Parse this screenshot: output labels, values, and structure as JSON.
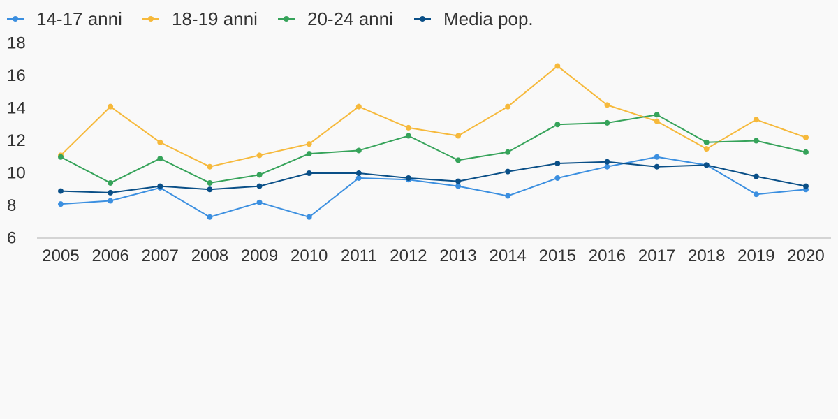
{
  "chart_data": {
    "type": "line",
    "title": "",
    "xlabel": "",
    "ylabel": "",
    "categories": [
      "2005",
      "2006",
      "2007",
      "2008",
      "2009",
      "2010",
      "2011",
      "2012",
      "2013",
      "2014",
      "2015",
      "2016",
      "2017",
      "2018",
      "2019",
      "2020"
    ],
    "yticks": [
      "6",
      "8",
      "10",
      "12",
      "14",
      "16",
      "18"
    ],
    "ylim": [
      6,
      18
    ],
    "grid": false,
    "legend_position": "top-left",
    "series": [
      {
        "name": "14-17 anni",
        "color": "#3b8fe0",
        "values": [
          8.1,
          8.3,
          9.1,
          7.3,
          8.2,
          7.3,
          9.7,
          9.6,
          9.2,
          8.6,
          9.7,
          10.4,
          11.0,
          10.5,
          8.7,
          9.0
        ]
      },
      {
        "name": "18-19 anni",
        "color": "#f6b93b",
        "values": [
          11.1,
          14.1,
          11.9,
          10.4,
          11.1,
          11.8,
          14.1,
          12.8,
          12.3,
          14.1,
          16.6,
          14.2,
          13.2,
          11.5,
          13.3,
          12.2
        ]
      },
      {
        "name": "20-24 anni",
        "color": "#36a35a",
        "values": [
          11.0,
          9.4,
          10.9,
          9.4,
          9.9,
          11.2,
          11.4,
          12.3,
          10.8,
          11.3,
          13.0,
          13.1,
          13.6,
          11.9,
          12.0,
          11.3
        ]
      },
      {
        "name": "Media pop.",
        "color": "#0a4f87",
        "values": [
          8.9,
          8.8,
          9.2,
          9.0,
          9.2,
          10.0,
          10.0,
          9.7,
          9.5,
          10.1,
          10.6,
          10.7,
          10.4,
          10.5,
          9.8,
          9.2
        ]
      }
    ]
  }
}
